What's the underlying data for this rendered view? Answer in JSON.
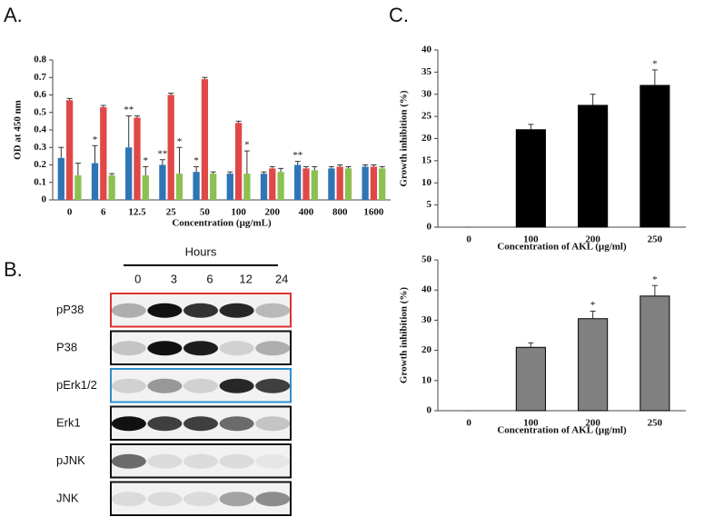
{
  "panels": {
    "a": "A.",
    "b": "B.",
    "c": "C."
  },
  "chart_data": [
    {
      "type": "bar",
      "y_label": "OD at 450 nm",
      "x_label": "Concentration (µg/mL)",
      "categories": [
        "0",
        "6",
        "12.5",
        "25",
        "50",
        "100",
        "200",
        "400",
        "800",
        "1600"
      ],
      "series": [
        {
          "color": "#2e75b6",
          "values": [
            0.24,
            0.21,
            0.3,
            0.2,
            0.16,
            0.15,
            0.15,
            0.2,
            0.18,
            0.19
          ],
          "errors": [
            0.06,
            0.1,
            0.18,
            0.03,
            0.03,
            0.01,
            0.01,
            0.02,
            0.01,
            0.01
          ],
          "significance": [
            null,
            "*",
            "**",
            "**",
            "*",
            null,
            null,
            "**",
            null,
            null
          ]
        },
        {
          "color": "#e04848",
          "values": [
            0.57,
            0.53,
            0.47,
            0.6,
            0.69,
            0.44,
            0.18,
            0.18,
            0.19,
            0.19
          ],
          "errors": [
            0.01,
            0.01,
            0.01,
            0.01,
            0.01,
            0.01,
            0.01,
            0.01,
            0.01,
            0.01
          ],
          "significance": [
            null,
            null,
            null,
            null,
            null,
            null,
            null,
            null,
            null,
            null
          ]
        },
        {
          "color": "#8cc152",
          "values": [
            0.14,
            0.14,
            0.14,
            0.15,
            0.15,
            0.15,
            0.16,
            0.17,
            0.18,
            0.18
          ],
          "errors": [
            0.07,
            0.01,
            0.05,
            0.15,
            0.01,
            0.13,
            0.02,
            0.02,
            0.01,
            0.01
          ],
          "significance": [
            null,
            null,
            "*",
            "*",
            null,
            "*",
            null,
            null,
            null,
            null
          ]
        }
      ],
      "ylim": [
        0,
        0.8
      ],
      "yticks": [
        0,
        0.1,
        0.2,
        0.3,
        0.4,
        0.5,
        0.6,
        0.7,
        0.8
      ]
    },
    {
      "type": "bar",
      "y_label": "Growth inhibition (%)",
      "x_label": "Concentration of AKL (µg/ml)",
      "categories": [
        "0",
        "100",
        "200",
        "250"
      ],
      "color": "#000000",
      "values": [
        0,
        22,
        27.5,
        32
      ],
      "errors": [
        0,
        1.2,
        2.5,
        3.5
      ],
      "significance": [
        null,
        null,
        null,
        "*"
      ],
      "ylim": [
        0,
        40
      ],
      "yticks": [
        0,
        5,
        10,
        15,
        20,
        25,
        30,
        35,
        40
      ]
    },
    {
      "type": "bar",
      "y_label": "Growth inhibition (%)",
      "x_label": "Concentration of AKL (µg/ml)",
      "categories": [
        "0",
        "100",
        "200",
        "250"
      ],
      "color": "#808080",
      "values": [
        0,
        21,
        30.5,
        38
      ],
      "errors": [
        0,
        1.5,
        2.5,
        3.5
      ],
      "significance": [
        null,
        null,
        "*",
        "*"
      ],
      "ylim": [
        0,
        50
      ],
      "yticks": [
        0,
        10,
        20,
        30,
        40,
        50
      ]
    }
  ],
  "blot": {
    "title": "Hours",
    "lanes": [
      "0",
      "3",
      "6",
      "12",
      "24"
    ],
    "rows": [
      {
        "label": "pP38",
        "color": "#e03030"
      },
      {
        "label": "P38",
        "color": "#111111"
      },
      {
        "label": "pErk1/2",
        "color": "#2e8fd0"
      },
      {
        "label": "Erk1",
        "color": "#111111"
      },
      {
        "label": "pJNK",
        "color": "#111111"
      },
      {
        "label": "JNK",
        "color": "#111111"
      }
    ]
  }
}
